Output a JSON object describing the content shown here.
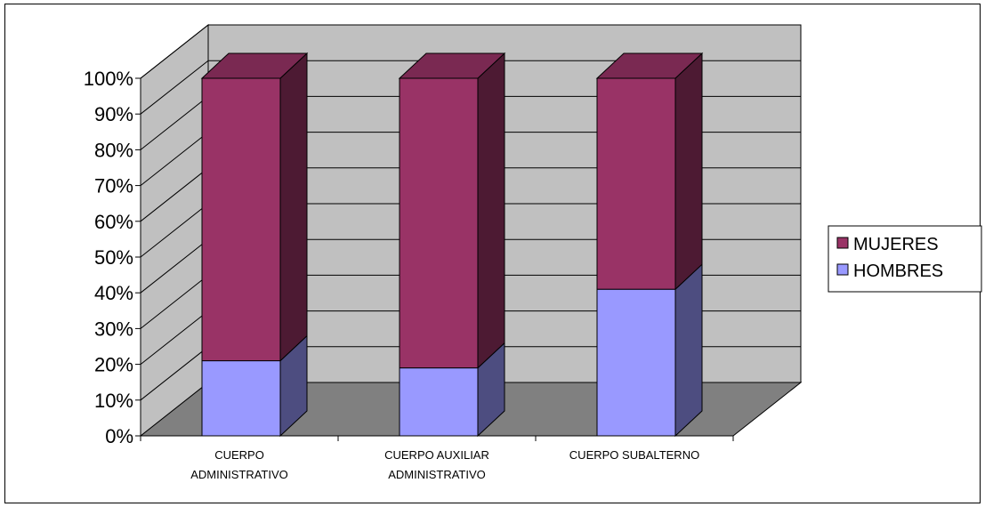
{
  "chart_data": {
    "type": "bar",
    "stacked": true,
    "percent_stacked": true,
    "three_d": true,
    "categories": [
      [
        "CUERPO",
        "ADMINISTRATIVO"
      ],
      [
        "CUERPO AUXILIAR",
        "ADMINISTRATIVO"
      ],
      [
        "CUERPO SUBALTERNO"
      ]
    ],
    "series": [
      {
        "name": "HOMBRES",
        "values": [
          21,
          19,
          41
        ],
        "color": "#9999ff",
        "side_color": "#4d4d80",
        "top_color": "#7a7acc"
      },
      {
        "name": "MUJERES",
        "values": [
          79,
          81,
          59
        ],
        "color": "#993366",
        "side_color": "#4d1a33",
        "top_color": "#7a2952"
      }
    ],
    "y_ticks": [
      "0%",
      "10%",
      "20%",
      "30%",
      "40%",
      "50%",
      "60%",
      "70%",
      "80%",
      "90%",
      "100%"
    ],
    "ylim": [
      0,
      100
    ],
    "grid": true,
    "legend": {
      "position": "right",
      "order": [
        "MUJERES",
        "HOMBRES"
      ]
    },
    "colors": {
      "wall": "#c0c0c0",
      "floor": "#808080",
      "grid": "#000000"
    }
  }
}
